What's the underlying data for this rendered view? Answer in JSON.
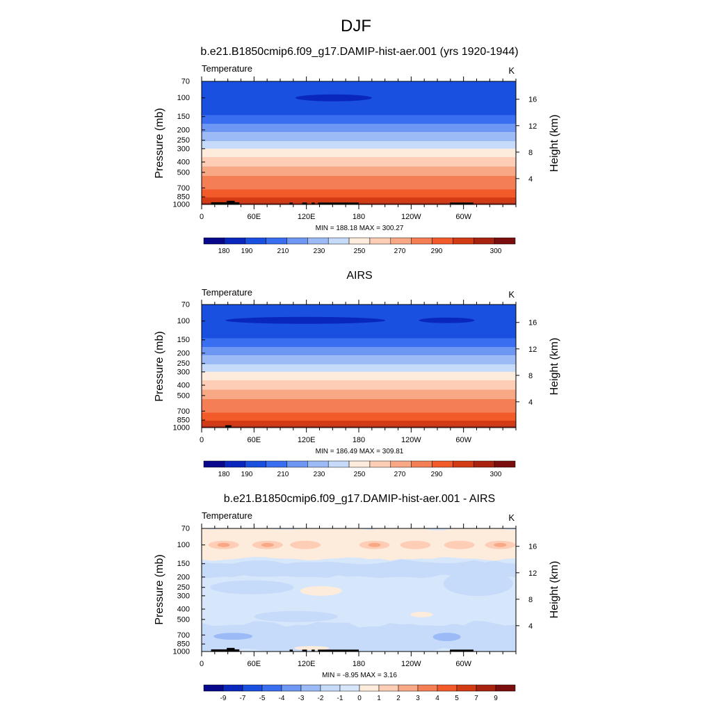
{
  "page_title": "DJF",
  "panels": [
    {
      "title": "b.e21.B1850cmip6.f09_g17.DAMIP-hist-aer.001 (yrs 1920-1944)",
      "var_label": "Temperature",
      "unit_label": "K",
      "minmax": "MIN = 188.18  MAX = 300.27",
      "palette": "abs",
      "colorbar_labels": [
        "180",
        "190",
        "210",
        "230",
        "250",
        "270",
        "290",
        "300"
      ],
      "topography": "full"
    },
    {
      "title": "AIRS",
      "var_label": "Temperature",
      "unit_label": "K",
      "minmax": "MIN = 186.49  MAX = 309.81",
      "palette": "abs",
      "colorbar_labels": [
        "180",
        "190",
        "210",
        "230",
        "250",
        "270",
        "290",
        "300"
      ],
      "topography": "small"
    },
    {
      "title": "b.e21.B1850cmip6.f09_g17.DAMIP-hist-aer.001 - AIRS",
      "var_label": "Temperature",
      "unit_label": "K",
      "minmax": "MIN = -8.95  MAX =   3.16",
      "palette": "diff",
      "colorbar_labels": [
        "-9",
        "-7",
        "-5",
        "-4",
        "-3",
        "-2",
        "-1",
        "0",
        "1",
        "2",
        "3",
        "4",
        "5",
        "7",
        "9"
      ],
      "topography": "full"
    }
  ],
  "axes": {
    "ylabel": "Pressure (mb)",
    "y2label": "Height (km)",
    "pressure_ticks": [
      "70",
      "100",
      "150",
      "200",
      "250",
      "300",
      "400",
      "500",
      "700",
      "850",
      "1000"
    ],
    "height_ticks": [
      "16",
      "12",
      "8",
      "4"
    ],
    "xticks": [
      "0",
      "60E",
      "120E",
      "180",
      "120W",
      "60W"
    ]
  },
  "colors": {
    "abs_palette": [
      "#08088c",
      "#0a27bd",
      "#1a50e0",
      "#3a6ef0",
      "#6e97f4",
      "#9cbbf6",
      "#c6dbfa",
      "#fdebdc",
      "#fdcdb6",
      "#f9a886",
      "#f47f55",
      "#f25a2a",
      "#d23b14",
      "#a8230f",
      "#7a0d0d"
    ],
    "diff_palette": [
      "#08088c",
      "#0a27bd",
      "#1a50e0",
      "#3a6ef0",
      "#6e97f4",
      "#9cbbf6",
      "#c6dbfa",
      "#d6e6fb",
      "#fdebdc",
      "#fdcdb6",
      "#f9a886",
      "#f47f55",
      "#f25a2a",
      "#d23b14",
      "#a8230f",
      "#7a0d0d"
    ],
    "topography": "#000000"
  },
  "chart_data": [
    {
      "type": "heatmap",
      "title": "b.e21.B1850cmip6.f09_g17.DAMIP-hist-aer.001 (yrs 1920-1944)",
      "xlabel": "",
      "ylabel": "Pressure (mb)",
      "y2label": "Height (km)",
      "variable": "Temperature",
      "units": "K",
      "x_ticks": [
        "0",
        "60E",
        "120E",
        "180",
        "120W",
        "60W"
      ],
      "y_ticks": [
        70,
        100,
        150,
        200,
        250,
        300,
        400,
        500,
        700,
        850,
        1000
      ],
      "y_scale": "log",
      "ylim": [
        1000,
        70
      ],
      "contour_levels": [
        180,
        185,
        190,
        200,
        210,
        220,
        230,
        240,
        250,
        260,
        270,
        280,
        290,
        295,
        300
      ],
      "min": 188.18,
      "max": 300.27,
      "profile": {
        "pressure": [
          70,
          100,
          150,
          200,
          250,
          300,
          400,
          500,
          700,
          850,
          1000
        ],
        "temperature": [
          205,
          198,
          205,
          214,
          223,
          233,
          248,
          258,
          272,
          283,
          293
        ]
      }
    },
    {
      "type": "heatmap",
      "title": "AIRS",
      "xlabel": "",
      "ylabel": "Pressure (mb)",
      "y2label": "Height (km)",
      "variable": "Temperature",
      "units": "K",
      "x_ticks": [
        "0",
        "60E",
        "120E",
        "180",
        "120W",
        "60W"
      ],
      "y_ticks": [
        70,
        100,
        150,
        200,
        250,
        300,
        400,
        500,
        700,
        850,
        1000
      ],
      "y_scale": "log",
      "ylim": [
        1000,
        70
      ],
      "contour_levels": [
        180,
        185,
        190,
        200,
        210,
        220,
        230,
        240,
        250,
        260,
        270,
        280,
        290,
        295,
        300
      ],
      "min": 186.49,
      "max": 309.81,
      "profile": {
        "pressure": [
          70,
          100,
          150,
          200,
          250,
          300,
          400,
          500,
          700,
          850,
          1000
        ],
        "temperature": [
          205,
          197,
          205,
          214,
          223,
          234,
          249,
          259,
          273,
          284,
          294
        ]
      }
    },
    {
      "type": "heatmap",
      "title": "b.e21.B1850cmip6.f09_g17.DAMIP-hist-aer.001 - AIRS",
      "xlabel": "",
      "ylabel": "Pressure (mb)",
      "y2label": "Height (km)",
      "variable": "Temperature",
      "units": "K",
      "x_ticks": [
        "0",
        "60E",
        "120E",
        "180",
        "120W",
        "60W"
      ],
      "y_ticks": [
        70,
        100,
        150,
        200,
        250,
        300,
        400,
        500,
        700,
        850,
        1000
      ],
      "y_scale": "log",
      "ylim": [
        1000,
        70
      ],
      "contour_levels": [
        -9,
        -7,
        -5,
        -4,
        -3,
        -2,
        -1,
        0,
        1,
        2,
        3,
        4,
        5,
        7,
        9
      ],
      "min": -8.95,
      "max": 3.16,
      "profile": {
        "pressure": [
          70,
          100,
          150,
          200,
          250,
          300,
          400,
          500,
          700,
          850,
          1000
        ],
        "difference": [
          0.5,
          1.5,
          -1.5,
          -2.0,
          -1.0,
          -0.8,
          -1.0,
          -1.2,
          -1.8,
          -2.5,
          -3.0
        ]
      }
    }
  ]
}
